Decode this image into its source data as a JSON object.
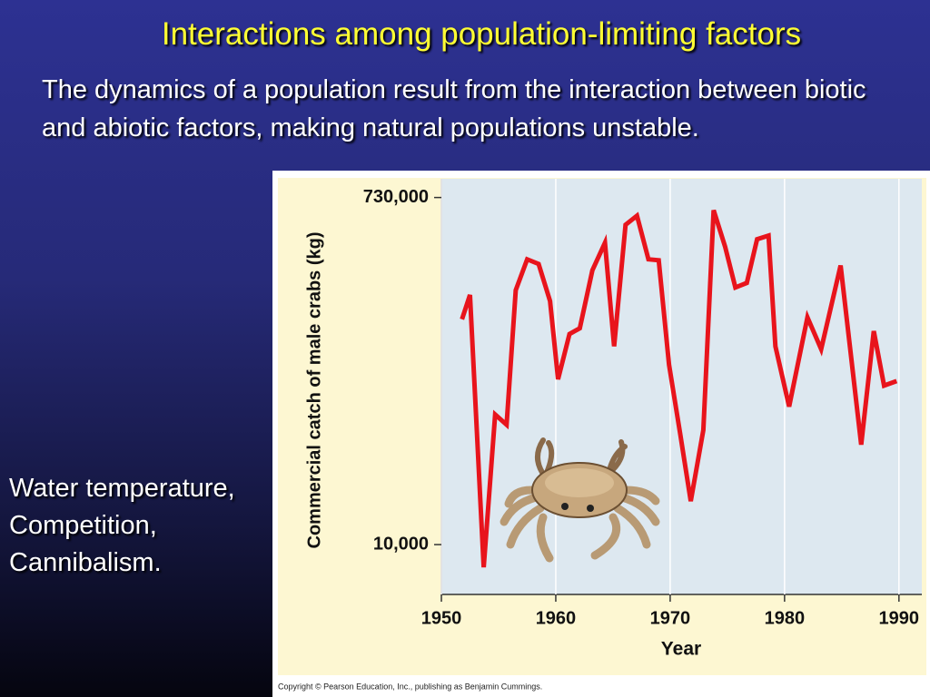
{
  "slide_title": "Interactions among population-limiting factors",
  "body": "The dynamics of a population result from the interaction between biotic and abiotic factors, making natural populations unstable.",
  "factors": [
    "Water temperature,",
    "Competition,",
    "Cannibalism."
  ],
  "copyright": "Copyright © Pearson Education, Inc., publishing as Benjamin Cummings.",
  "chart_data": {
    "type": "line",
    "x_label": "Year",
    "y_label": "Commercial catch of male crabs (kg)",
    "log_scale": true,
    "color": "#e8141c",
    "x": [
      1951.8,
      1952.5,
      1953.7,
      1954.7,
      1955.7,
      1956.5,
      1957.5,
      1958.5,
      1959.5,
      1960.2,
      1961.2,
      1962.1,
      1963.2,
      1964.3,
      1965.1,
      1966.1,
      1967.1,
      1968.1,
      1969,
      1969.9,
      1970.9,
      1971.8,
      1972.9,
      1973.8,
      1974.8,
      1975.7,
      1976.7,
      1977.6,
      1978.6,
      1979.2,
      1980.4,
      1982,
      1983.2,
      1984.9,
      1986.7,
      1987.8,
      1988.7,
      1989.8
    ],
    "values": [
      162000,
      219000,
      7550,
      49900,
      44000,
      232000,
      340000,
      321000,
      203000,
      77200,
      135000,
      145000,
      297000,
      417000,
      116000,
      521000,
      583000,
      340000,
      336000,
      92500,
      38500,
      17100,
      41200,
      624000,
      398000,
      240000,
      254000,
      436000,
      456000,
      116000,
      55100,
      166000,
      112000,
      315000,
      34400,
      140000,
      71400,
      75500
    ],
    "xlim": [
      1950,
      1992
    ],
    "ylim": [
      5400,
      920000
    ],
    "xticks": [
      1950,
      1960,
      1970,
      1980,
      1990
    ],
    "yticks": [
      {
        "value": 10000,
        "label": "10,000"
      },
      {
        "value": 730000,
        "label": "730,000"
      }
    ],
    "grid": true
  }
}
